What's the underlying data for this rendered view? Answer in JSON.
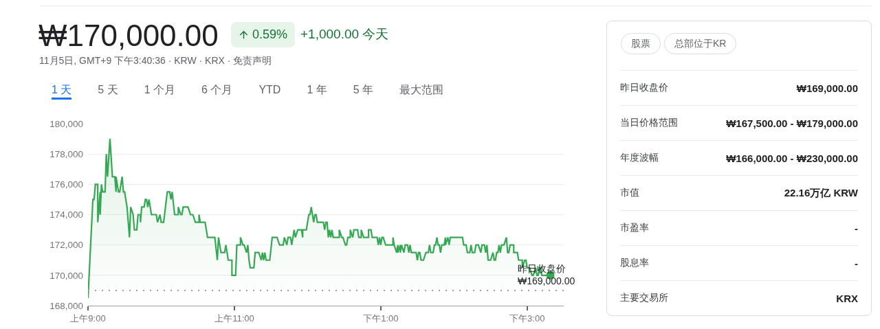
{
  "chart_data": [
    {
      "type": "area",
      "title": "₩170,000.00",
      "subtitle": "11月5日, GMT+9 下午3:40:36 · KRW · KRX · 免责声明",
      "annotations": [
        "0.59%",
        "+1,000.00 今天",
        "1 天",
        "5 天",
        "1 个月",
        "6 个月",
        "YTD",
        "1 年",
        "5 年",
        "最大范围"
      ],
      "xlim": [
        "--11-05T09:00",
        "--11-05T15:30"
      ],
      "xticks": [
        {
          "value": "--11-05T09:00",
          "label": "上午9:00"
        },
        {
          "value": "--11-05T11:00",
          "label": "上午11:00"
        },
        {
          "value": "--11-05T13:00",
          "label": "下午1:00"
        },
        {
          "value": "--11-05T15:00",
          "label": "下午3:00"
        }
      ],
      "ylim": [
        168000,
        180000
      ],
      "yticks": [
        {
          "value": 168000,
          "label": "168,000"
        },
        {
          "value": 170000,
          "label": "170,000"
        },
        {
          "value": 172000,
          "label": "172,000"
        },
        {
          "value": 174000,
          "label": "174,000"
        },
        {
          "value": 176000,
          "label": "176,000"
        },
        {
          "value": 178000,
          "label": "178,000"
        },
        {
          "value": 180000,
          "label": "180,000"
        }
      ],
      "grid": "y",
      "ref_lines": [
        {
          "axis": "y",
          "value": 169000,
          "label": "昨日收盘价 ₩169,000.00",
          "color": "#9aa0a6",
          "line_style": "dotted"
        }
      ],
      "series": [
        {
          "type": "area",
          "color": "#34a853",
          "x": [
            "--11-05T09:00",
            "--11-05T09:04",
            "--11-05T09:05",
            "--11-05T09:06",
            "--11-05T09:08",
            "--11-05T09:08",
            "--11-05T09:10",
            "--11-05T09:10",
            "--11-05T09:11",
            "--11-05T09:12",
            "--11-05T09:14",
            "--11-05T09:15",
            "--11-05T09:16",
            "--11-05T09:18",
            "--11-05T09:20",
            "--11-05T09:22",
            "--11-05T09:23",
            "--11-05T09:23",
            "--11-05T09:25",
            "--11-05T09:26",
            "--11-05T09:28",
            "--11-05T09:29",
            "--11-05T09:30",
            "--11-05T09:32",
            "--11-05T09:32",
            "--11-05T09:34",
            "--11-05T09:35",
            "--11-05T09:37",
            "--11-05T09:38",
            "--11-05T09:40",
            "--11-05T09:41",
            "--11-05T09:43",
            "--11-05T09:43",
            "--11-05T09:44",
            "--11-05T09:46",
            "--11-05T09:47",
            "--11-05T09:48",
            "--11-05T09:49",
            "--11-05T09:50",
            "--11-05T09:52",
            "--11-05T09:56",
            "--11-05T09:57",
            "--11-05T09:59",
            "--11-05T10:00",
            "--11-05T10:02",
            "--11-05T10:05",
            "--11-05T10:07",
            "--11-05T10:08",
            "--11-05T10:09",
            "--11-05T10:11",
            "--11-05T10:14",
            "--11-05T10:14",
            "--11-05T10:16",
            "--11-05T10:17",
            "--11-05T10:18",
            "--11-05T10:22",
            "--11-05T10:24",
            "--11-05T10:26",
            "--11-05T10:28",
            "--11-05T10:31",
            "--11-05T10:31",
            "--11-05T10:32",
            "--11-05T10:36",
            "--11-05T10:37",
            "--11-05T10:38",
            "--11-05T10:44",
            "--11-05T10:46",
            "--11-05T10:47",
            "--11-05T10:49",
            "--11-05T10:52",
            "--11-05T10:53",
            "--11-05T10:54",
            "--11-05T10:55",
            "--11-05T10:58",
            "--11-05T10:58",
            "--11-05T11:01",
            "--11-05T11:02",
            "--11-05T11:05",
            "--11-05T11:05",
            "--11-05T11:07",
            "--11-05T11:08",
            "--11-05T11:10",
            "--11-05T11:11",
            "--11-05T11:12",
            "--11-05T11:13",
            "--11-05T11:16",
            "--11-05T11:17",
            "--11-05T11:20",
            "--11-05T11:22",
            "--11-05T11:23",
            "--11-05T11:24",
            "--11-05T11:25",
            "--11-05T11:26",
            "--11-05T11:29",
            "--11-05T11:31",
            "--11-05T11:35",
            "--11-05T11:37",
            "--11-05T11:40",
            "--11-05T11:41",
            "--11-05T11:43",
            "--11-05T11:44",
            "--11-05T11:46",
            "--11-05T11:47",
            "--11-05T11:49",
            "--11-05T11:50",
            "--11-05T11:52",
            "--11-05T11:55",
            "--11-05T11:56",
            "--11-05T11:56",
            "--11-05T11:59",
            "--11-05T12:01",
            "--11-05T12:02",
            "--11-05T12:03",
            "--11-05T12:04",
            "--11-05T12:05",
            "--11-05T12:06",
            "--11-05T12:07",
            "--11-05T12:08",
            "--11-05T12:13",
            "--11-05T12:14",
            "--11-05T12:15",
            "--11-05T12:16",
            "--11-05T12:17",
            "--11-05T12:18",
            "--11-05T12:19",
            "--11-05T12:20",
            "--11-05T12:21",
            "--11-05T12:26",
            "--11-05T12:26",
            "--11-05T12:28",
            "--11-05T12:29",
            "--11-05T12:31",
            "--11-05T12:32",
            "--11-05T12:33",
            "--11-05T12:35",
            "--11-05T12:35",
            "--11-05T12:37",
            "--11-05T12:38",
            "--11-05T12:41",
            "--11-05T12:42",
            "--11-05T12:44",
            "--11-05T12:44",
            "--11-05T12:46",
            "--11-05T12:50",
            "--11-05T12:50",
            "--11-05T12:52",
            "--11-05T12:53",
            "--11-05T12:57",
            "--11-05T12:58",
            "--11-05T12:59",
            "--11-05T13:00",
            "--11-05T13:01",
            "--11-05T13:02",
            "--11-05T13:04",
            "--11-05T13:10",
            "--11-05T13:10",
            "--11-05T13:11",
            "--11-05T13:13",
            "--11-05T13:14",
            "--11-05T13:14",
            "--11-05T13:16",
            "--11-05T13:16",
            "--11-05T13:17",
            "--11-05T13:19",
            "--11-05T13:20",
            "--11-05T13:22",
            "--11-05T13:23",
            "--11-05T13:24",
            "--11-05T13:25",
            "--11-05T13:29",
            "--11-05T13:30",
            "--11-05T13:31",
            "--11-05T13:32",
            "--11-05T13:33",
            "--11-05T13:35",
            "--11-05T13:37",
            "--11-05T13:39",
            "--11-05T13:40",
            "--11-05T13:41",
            "--11-05T13:43",
            "--11-05T13:44",
            "--11-05T13:45",
            "--11-05T13:46",
            "--11-05T13:47",
            "--11-05T13:48",
            "--11-05T13:49",
            "--11-05T13:50",
            "--11-05T13:52",
            "--11-05T13:53",
            "--11-05T13:53",
            "--11-05T13:55",
            "--11-05T13:56",
            "--11-05T13:57",
            "--11-05T14:07",
            "--11-05T14:08",
            "--11-05T14:10",
            "--11-05T14:11",
            "--11-05T14:13",
            "--11-05T14:14",
            "--11-05T14:15",
            "--11-05T14:17",
            "--11-05T14:18",
            "--11-05T14:20",
            "--11-05T14:22",
            "--11-05T14:23",
            "--11-05T14:25",
            "--11-05T14:26",
            "--11-05T14:27",
            "--11-05T14:28",
            "--11-05T14:30",
            "--11-05T14:32",
            "--11-05T14:33",
            "--11-05T14:34",
            "--11-05T14:35",
            "--11-05T14:36",
            "--11-05T14:37",
            "--11-05T14:38",
            "--11-05T14:39",
            "--11-05T14:41",
            "--11-05T14:43",
            "--11-05T14:44",
            "--11-05T14:45",
            "--11-05T14:46",
            "--11-05T14:49",
            "--11-05T14:49",
            "--11-05T14:52",
            "--11-05T14:53",
            "--11-05T14:56",
            "--11-05T14:56",
            "--11-05T14:58",
            "--11-05T14:59",
            "--11-05T15:00",
            "--11-05T15:02",
            "--11-05T15:04",
            "--11-05T15:05",
            "--11-05T15:07",
            "--11-05T15:08",
            "--11-05T15:09",
            "--11-05T15:10",
            "--11-05T15:11",
            "--11-05T15:12",
            "--11-05T15:19"
          ],
          "values": [
            168500,
            175000,
            175000,
            176000,
            176000,
            173500,
            175500,
            174000,
            176000,
            175500,
            175500,
            178000,
            176500,
            179000,
            176500,
            176500,
            175500,
            176500,
            175500,
            175500,
            176500,
            175500,
            175500,
            174500,
            174500,
            172500,
            174500,
            174000,
            173000,
            173000,
            174000,
            174000,
            173500,
            174500,
            174500,
            175000,
            175000,
            174500,
            175000,
            174000,
            174000,
            173500,
            174000,
            173500,
            173500,
            175500,
            175500,
            175000,
            175500,
            174000,
            174000,
            174500,
            174000,
            174000,
            174500,
            174500,
            174000,
            174000,
            173500,
            173500,
            174000,
            173500,
            173500,
            173000,
            172500,
            172500,
            171000,
            172500,
            171500,
            171500,
            172000,
            171500,
            171000,
            171000,
            170000,
            170000,
            172000,
            172000,
            172500,
            172000,
            172000,
            171500,
            172000,
            171000,
            170500,
            170500,
            171500,
            171500,
            171000,
            171500,
            171000,
            171500,
            171000,
            171000,
            172500,
            172500,
            172000,
            172000,
            172500,
            172000,
            172500,
            172500,
            172000,
            173000,
            172500,
            173000,
            173000,
            172500,
            173000,
            173000,
            174000,
            174000,
            174500,
            174000,
            173500,
            174000,
            174000,
            173500,
            173500,
            173000,
            173500,
            173500,
            172500,
            173000,
            172500,
            173000,
            172500,
            172500,
            173000,
            172500,
            172500,
            172000,
            172000,
            172500,
            172500,
            173000,
            172500,
            173000,
            173000,
            172500,
            172500,
            173000,
            172500,
            172500,
            173000,
            173000,
            172500,
            172500,
            172000,
            172500,
            172000,
            172500,
            172500,
            172000,
            172000,
            172500,
            172000,
            171500,
            172000,
            171500,
            172000,
            171500,
            172000,
            171500,
            172000,
            172000,
            171500,
            172000,
            171500,
            171500,
            171000,
            171500,
            171500,
            171000,
            171000,
            171500,
            171500,
            172000,
            171500,
            171500,
            172000,
            172000,
            172500,
            172000,
            172000,
            171500,
            172000,
            172000,
            172500,
            172000,
            172500,
            172000,
            172500,
            172500,
            172000,
            172000,
            171500,
            171500,
            172000,
            171500,
            171500,
            172000,
            172000,
            171500,
            172000,
            172000,
            171500,
            172000,
            171000,
            171000,
            171500,
            171000,
            171000,
            171500,
            171500,
            172000,
            171500,
            172000,
            172000,
            172500,
            171500,
            171500,
            172000,
            172000,
            171500,
            171500,
            171000,
            171000,
            170500,
            171000,
            171000,
            170500,
            170500,
            170000,
            170000,
            170500,
            170000,
            170000,
            170500,
            170500,
            170000,
            170000
          ]
        },
        {
          "type": "scatter",
          "color": "#34a853",
          "marker": "circle",
          "x": [
            "--11-05T15:19"
          ],
          "values": [
            170000
          ]
        }
      ]
    },
    {
      "type": "other",
      "annotations": [
        "股票",
        "总部位于KR"
      ],
      "categories": [
        "昨日收盘价",
        "当日价格范围",
        "年度波幅",
        "市值",
        "市盈率",
        "股息率",
        "主要交易所"
      ],
      "value_labels": [
        "₩169,000.00",
        "₩167,500.00 - ₩179,000.00",
        "₩166,000.00 - ₩230,000.00",
        "22.16万亿 KRW",
        "-",
        "-",
        "KRX"
      ]
    }
  ]
}
